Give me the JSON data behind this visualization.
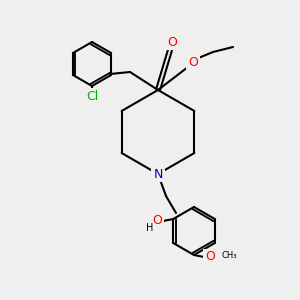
{
  "bg_color": "#efefef",
  "bond_color": "#000000",
  "bond_width": 1.5,
  "atom_colors": {
    "O": "#ff0000",
    "N": "#0000cc",
    "Cl": "#00aa00",
    "C": "#000000"
  },
  "font_size": 8,
  "fig_size": [
    3.0,
    3.0
  ],
  "dpi": 100
}
